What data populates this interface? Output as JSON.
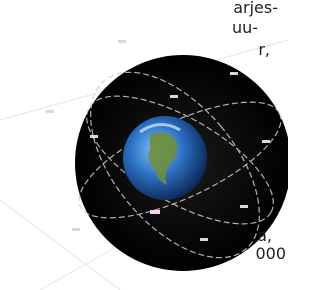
{
  "text_column": {
    "top_lines": [
      "arjes-",
      "uu-",
      "r,"
    ],
    "bottom_lines": [
      "a,",
      "000"
    ]
  }
}
